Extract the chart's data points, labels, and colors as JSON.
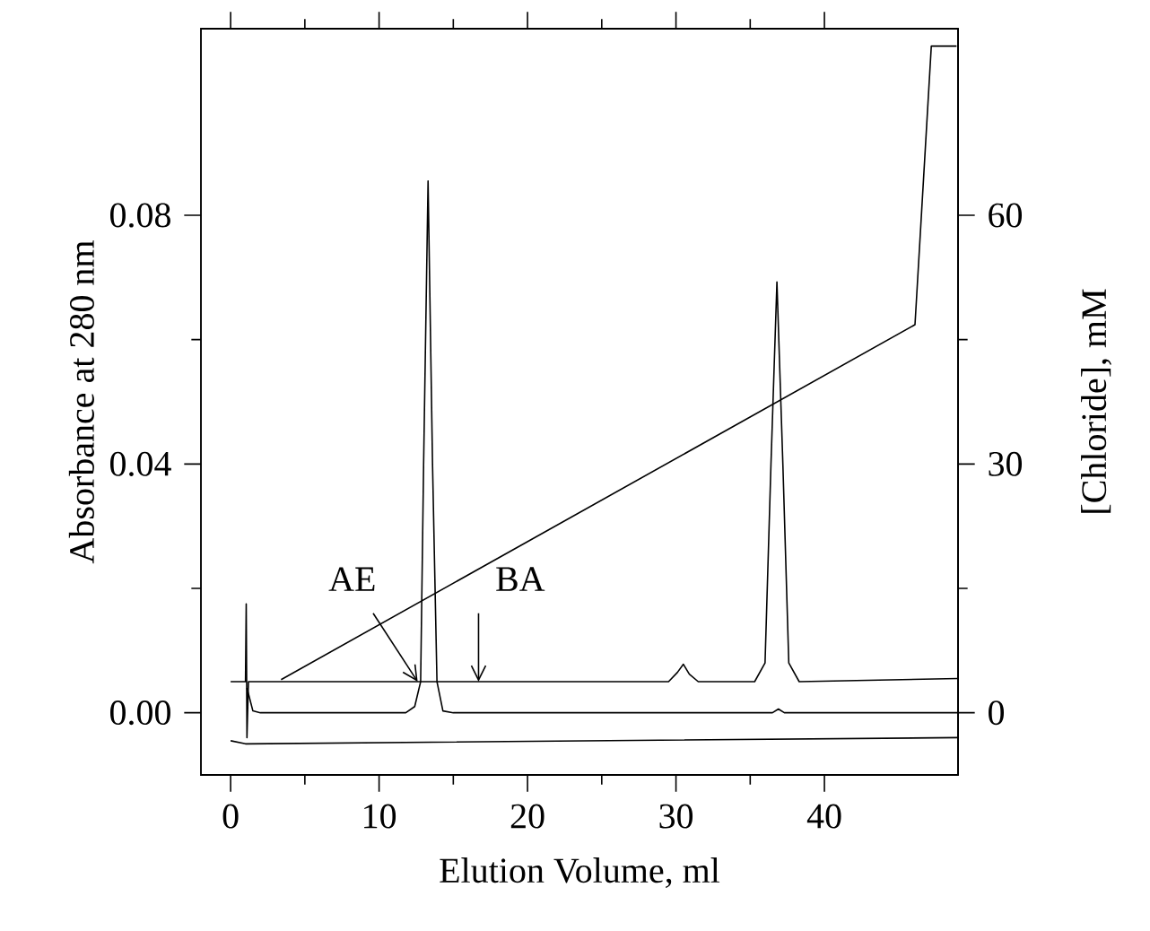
{
  "chart_data": {
    "type": "line",
    "xlabel": "Elution Volume, ml",
    "ylabel": "Absorbance at 280 nm",
    "y2label": "[Chloride], mM",
    "xlim": [
      -2,
      49
    ],
    "xticks": [
      0,
      10,
      20,
      30,
      40
    ],
    "ylim": [
      -0.01,
      0.11
    ],
    "yticks": [
      {
        "value": 0,
        "label": "0.00"
      },
      {
        "value": 0.04,
        "label": "0.04"
      },
      {
        "value": 0.08,
        "label": "0.08"
      }
    ],
    "y2lim": [
      -7.5,
      82.5
    ],
    "y2ticks": [
      0,
      30,
      60
    ],
    "grid": false,
    "legend": false,
    "marker": "none",
    "line_style": "solid",
    "series": [
      {
        "color": "#000000",
        "x": [
          0,
          1.0,
          1.05,
          1.1,
          1.2,
          29.5,
          30.1,
          30.5,
          30.9,
          31.5,
          35.3,
          36.0,
          36.4,
          36.8,
          37.2,
          37.6,
          38.3,
          49
        ],
        "values": [
          0.005,
          0.005,
          0.0175,
          -0.004,
          0.005,
          0.005,
          0.0065,
          0.0078,
          0.0062,
          0.005,
          0.005,
          0.008,
          0.04,
          0.0693,
          0.04,
          0.008,
          0.005,
          0.0055
        ]
      },
      {
        "color": "#000000",
        "x": [
          1.1,
          1.5,
          2,
          11.8,
          12.4,
          12.8,
          13.0,
          13.3,
          13.6,
          13.9,
          14.3,
          15,
          36.5,
          36.9,
          37.3,
          49
        ],
        "values": [
          0.004,
          0.0003,
          0,
          0,
          0.001,
          0.005,
          0.04,
          0.0855,
          0.04,
          0.005,
          0.0003,
          0,
          0,
          0.0006,
          0,
          0
        ]
      },
      {
        "color": "#000000",
        "x": [
          0,
          1,
          49
        ],
        "values": [
          -0.0045,
          -0.005,
          -0.004
        ]
      },
      {
        "color": "#000000",
        "axis": "y2",
        "x": [
          3.4,
          46.1,
          47.2,
          48.9
        ],
        "values": [
          4,
          46.8,
          80.4,
          80.4
        ]
      }
    ],
    "annotations": [
      {
        "text": "AE",
        "x": 12.6,
        "y": 0.005
      },
      {
        "text": "BA",
        "x": 16.7,
        "y": 0.005
      }
    ]
  }
}
